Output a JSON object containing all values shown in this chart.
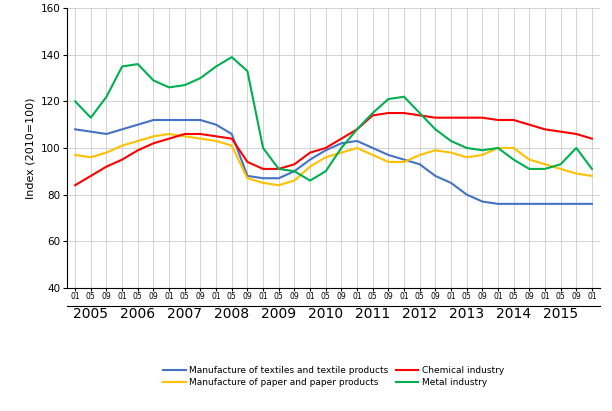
{
  "ylabel": "Index (2010=100)",
  "ylim": [
    40,
    160
  ],
  "yticks": [
    40,
    60,
    80,
    100,
    120,
    140,
    160
  ],
  "colors": {
    "textiles": "#4472C4",
    "paper": "#FFC000",
    "chemical": "#FF0000",
    "metal": "#00B050"
  },
  "legend": [
    "Manufacture of textiles and textile products",
    "Manufacture of paper and paper products",
    "Chemical industry",
    "Metal industry"
  ],
  "x_year_labels": [
    "2005",
    "2006",
    "2007",
    "2008",
    "2009",
    "2010",
    "2011",
    "2012",
    "2013",
    "2014",
    "2015"
  ],
  "n_points": 34,
  "textiles": [
    108,
    107,
    106,
    108,
    110,
    112,
    112,
    112,
    112,
    110,
    106,
    88,
    87,
    87,
    90,
    95,
    99,
    102,
    103,
    100,
    97,
    95,
    93,
    88,
    85,
    80,
    77,
    76,
    76,
    76,
    76,
    76,
    76,
    76
  ],
  "paper": [
    97,
    96,
    98,
    101,
    103,
    105,
    106,
    105,
    104,
    103,
    101,
    87,
    85,
    84,
    86,
    92,
    96,
    98,
    100,
    97,
    94,
    94,
    97,
    99,
    98,
    96,
    97,
    100,
    100,
    95,
    93,
    91,
    89,
    88
  ],
  "chemical": [
    84,
    88,
    92,
    95,
    99,
    102,
    104,
    106,
    106,
    105,
    104,
    94,
    91,
    91,
    93,
    98,
    100,
    104,
    108,
    114,
    115,
    115,
    114,
    113,
    113,
    113,
    113,
    112,
    112,
    110,
    108,
    107,
    106,
    104
  ],
  "metal": [
    120,
    113,
    122,
    135,
    136,
    129,
    126,
    127,
    130,
    135,
    139,
    133,
    100,
    91,
    90,
    86,
    90,
    100,
    108,
    115,
    121,
    122,
    115,
    108,
    103,
    100,
    99,
    100,
    95,
    91,
    91,
    93,
    100,
    91
  ]
}
